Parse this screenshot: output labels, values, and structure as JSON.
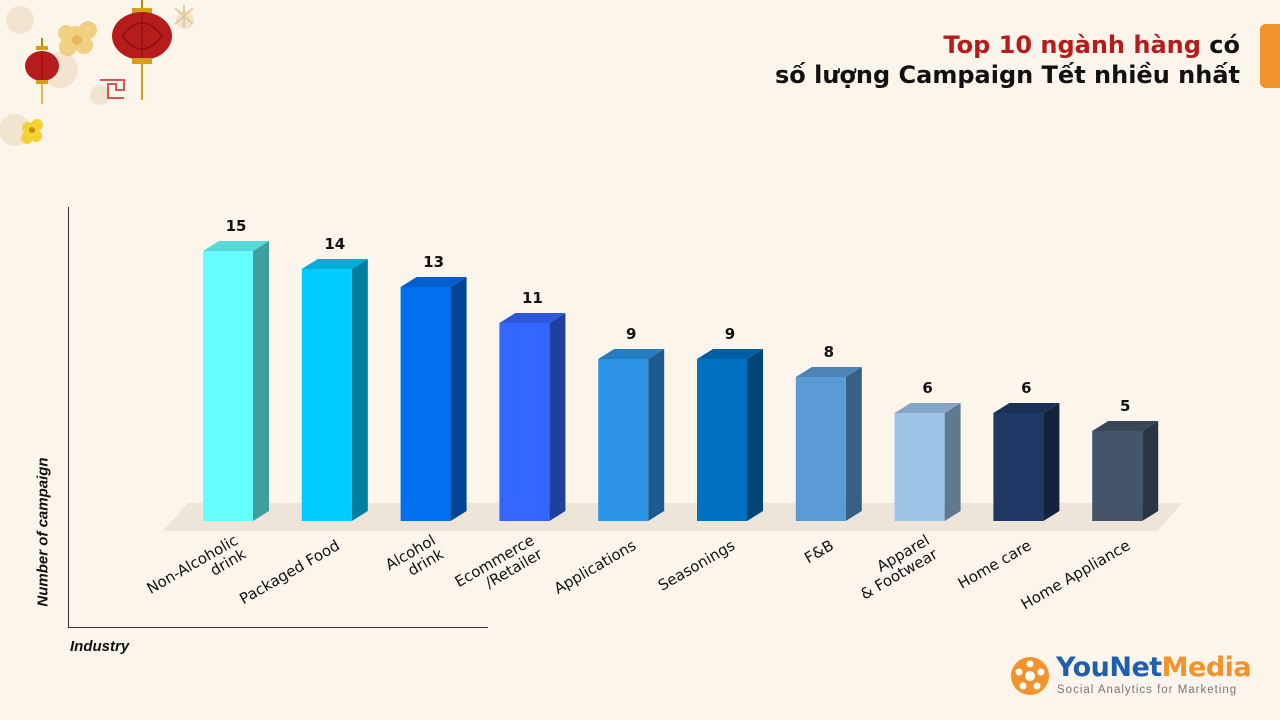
{
  "header": {
    "title_highlight": "Top 10 ngành hàng",
    "title_rest_line1": " có",
    "title_line2": "số lượng Campaign Tết nhiều nhất"
  },
  "brand": {
    "name_part1": "YouNet",
    "name_part2": "Media",
    "tagline": "Social Analytics for Marketing"
  },
  "chart_data": {
    "type": "bar",
    "title": "Top 10 ngành hàng có số lượng Campaign Tết nhiều nhất",
    "xlabel": "Industry",
    "ylabel": "Number of campaign",
    "categories": [
      "Non-Alcoholic drink",
      "Packaged Food",
      "Alcohol drink",
      "Ecommerce /Retailer",
      "Applications",
      "Seasonings",
      "F&B",
      "Apparel & Footwear",
      "Home care",
      "Home Appliance"
    ],
    "category_lines": [
      [
        "Non-Alcoholic",
        "drink"
      ],
      [
        "Packaged Food"
      ],
      [
        "Alcohol",
        "drink"
      ],
      [
        "Ecommerce",
        "/Retailer"
      ],
      [
        "Applications"
      ],
      [
        "Seasonings"
      ],
      [
        "F&B"
      ],
      [
        "Apparel",
        "& Footwear"
      ],
      [
        "Home care"
      ],
      [
        "Home Appliance"
      ]
    ],
    "values": [
      15,
      14,
      13,
      11,
      9,
      9,
      8,
      6,
      6,
      5
    ],
    "colors": [
      "#66ffff",
      "#00ccff",
      "#0070ef",
      "#3366ff",
      "#2b93e3",
      "#0070c0",
      "#5b9bd5",
      "#9dc3e6",
      "#1f3864",
      "#44546a"
    ],
    "data_labels": true,
    "grid": false,
    "legend": "none"
  }
}
